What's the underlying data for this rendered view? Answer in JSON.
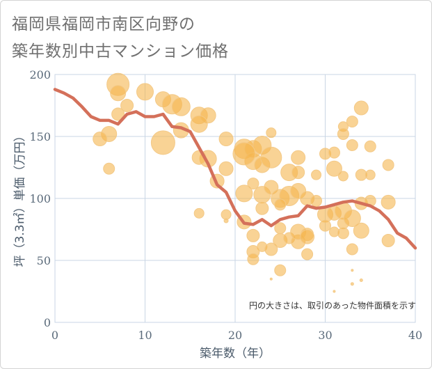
{
  "title": {
    "line1": "福岡県福岡市南区向野の",
    "line2": "築年数別中古マンション価格"
  },
  "colors": {
    "bubble_fill": "#f5b54f",
    "bubble_stroke": "#f3c987",
    "line": "#d4705a",
    "grid": "#c9d6e4",
    "plot_bg": "#ffffff"
  },
  "chart_data": {
    "type": "scatter",
    "xlabel": "築年数（年）",
    "ylabel": "坪（3.3㎡）単価（万円）",
    "xlim": [
      0,
      40
    ],
    "ylim": [
      0,
      200
    ],
    "xticks": [
      0,
      10,
      20,
      30,
      40
    ],
    "yticks": [
      0,
      50,
      100,
      150,
      200
    ],
    "annotation": "円の大きさは、取引のあった物件面積を示す",
    "grid": true,
    "bubbles": [
      {
        "x": 7,
        "y": 192,
        "s": 16
      },
      {
        "x": 7,
        "y": 185,
        "s": 11
      },
      {
        "x": 10,
        "y": 186,
        "s": 12
      },
      {
        "x": 8,
        "y": 175,
        "s": 9
      },
      {
        "x": 12,
        "y": 180,
        "s": 11
      },
      {
        "x": 13,
        "y": 176,
        "s": 14
      },
      {
        "x": 14,
        "y": 174,
        "s": 13
      },
      {
        "x": 7,
        "y": 168,
        "s": 9
      },
      {
        "x": 16,
        "y": 167,
        "s": 12
      },
      {
        "x": 17,
        "y": 167,
        "s": 11
      },
      {
        "x": 16,
        "y": 160,
        "s": 12
      },
      {
        "x": 14,
        "y": 155,
        "s": 11
      },
      {
        "x": 6,
        "y": 152,
        "s": 11
      },
      {
        "x": 5,
        "y": 148,
        "s": 10
      },
      {
        "x": 12,
        "y": 145,
        "s": 17
      },
      {
        "x": 19,
        "y": 148,
        "s": 10
      },
      {
        "x": 17,
        "y": 132,
        "s": 12
      },
      {
        "x": 16,
        "y": 133,
        "s": 10
      },
      {
        "x": 6,
        "y": 124,
        "s": 8
      },
      {
        "x": 19,
        "y": 124,
        "s": 10
      },
      {
        "x": 18,
        "y": 114,
        "s": 10
      },
      {
        "x": 16,
        "y": 88,
        "s": 7
      },
      {
        "x": 19,
        "y": 87,
        "s": 7
      },
      {
        "x": 19,
        "y": 82,
        "s": 3
      },
      {
        "x": 21,
        "y": 140,
        "s": 14
      },
      {
        "x": 22,
        "y": 140,
        "s": 12
      },
      {
        "x": 23,
        "y": 143,
        "s": 13
      },
      {
        "x": 24,
        "y": 153,
        "s": 7
      },
      {
        "x": 22,
        "y": 130,
        "s": 12
      },
      {
        "x": 23,
        "y": 127,
        "s": 11
      },
      {
        "x": 24,
        "y": 133,
        "s": 15
      },
      {
        "x": 21,
        "y": 136,
        "s": 16
      },
      {
        "x": 21,
        "y": 104,
        "s": 12
      },
      {
        "x": 22,
        "y": 112,
        "s": 8
      },
      {
        "x": 23,
        "y": 103,
        "s": 12
      },
      {
        "x": 24,
        "y": 109,
        "s": 10
      },
      {
        "x": 25,
        "y": 100,
        "s": 13
      },
      {
        "x": 26,
        "y": 102,
        "s": 14
      },
      {
        "x": 26,
        "y": 121,
        "s": 12
      },
      {
        "x": 27,
        "y": 133,
        "s": 10
      },
      {
        "x": 27,
        "y": 121,
        "s": 9
      },
      {
        "x": 27,
        "y": 106,
        "s": 11
      },
      {
        "x": 28,
        "y": 100,
        "s": 10
      },
      {
        "x": 25,
        "y": 95,
        "s": 8
      },
      {
        "x": 23,
        "y": 92,
        "s": 9
      },
      {
        "x": 21,
        "y": 81,
        "s": 10
      },
      {
        "x": 22,
        "y": 70,
        "s": 9
      },
      {
        "x": 23,
        "y": 61,
        "s": 7
      },
      {
        "x": 24,
        "y": 59,
        "s": 9
      },
      {
        "x": 22,
        "y": 57,
        "s": 9
      },
      {
        "x": 22,
        "y": 51,
        "s": 8
      },
      {
        "x": 25,
        "y": 66,
        "s": 10
      },
      {
        "x": 26,
        "y": 68,
        "s": 8
      },
      {
        "x": 25,
        "y": 76,
        "s": 8
      },
      {
        "x": 27,
        "y": 65,
        "s": 10
      },
      {
        "x": 27,
        "y": 73,
        "s": 11
      },
      {
        "x": 28,
        "y": 71,
        "s": 9
      },
      {
        "x": 28,
        "y": 69,
        "s": 10
      },
      {
        "x": 28,
        "y": 55,
        "s": 8
      },
      {
        "x": 25,
        "y": 42,
        "s": 8
      },
      {
        "x": 24,
        "y": 35,
        "s": 1.5
      },
      {
        "x": 29,
        "y": 119,
        "s": 7
      },
      {
        "x": 29,
        "y": 98,
        "s": 8
      },
      {
        "x": 30,
        "y": 136,
        "s": 8
      },
      {
        "x": 30,
        "y": 87,
        "s": 11
      },
      {
        "x": 30,
        "y": 78,
        "s": 8
      },
      {
        "x": 31,
        "y": 137,
        "s": 8
      },
      {
        "x": 31,
        "y": 124,
        "s": 11
      },
      {
        "x": 31,
        "y": 88,
        "s": 10
      },
      {
        "x": 31,
        "y": 73,
        "s": 7
      },
      {
        "x": 32,
        "y": 158,
        "s": 7
      },
      {
        "x": 32,
        "y": 152,
        "s": 8
      },
      {
        "x": 32,
        "y": 118,
        "s": 7
      },
      {
        "x": 32,
        "y": 90,
        "s": 12
      },
      {
        "x": 32,
        "y": 80,
        "s": 8
      },
      {
        "x": 32,
        "y": 72,
        "s": 8
      },
      {
        "x": 33,
        "y": 162,
        "s": 8
      },
      {
        "x": 33,
        "y": 143,
        "s": 8
      },
      {
        "x": 33,
        "y": 84,
        "s": 12
      },
      {
        "x": 33,
        "y": 59,
        "s": 8
      },
      {
        "x": 34,
        "y": 173,
        "s": 10
      },
      {
        "x": 34,
        "y": 119,
        "s": 8
      },
      {
        "x": 34,
        "y": 96,
        "s": 9
      },
      {
        "x": 34,
        "y": 74,
        "s": 11
      },
      {
        "x": 35,
        "y": 142,
        "s": 8
      },
      {
        "x": 35,
        "y": 119,
        "s": 7
      },
      {
        "x": 35,
        "y": 98,
        "s": 8
      },
      {
        "x": 37,
        "y": 127,
        "s": 8
      },
      {
        "x": 37,
        "y": 97,
        "s": 10
      },
      {
        "x": 37,
        "y": 66,
        "s": 9
      },
      {
        "x": 33,
        "y": 42,
        "s": 1.5
      },
      {
        "x": 31,
        "y": 25,
        "s": 1.5
      },
      {
        "x": 34,
        "y": 34,
        "s": 2
      },
      {
        "x": 33,
        "y": 31,
        "s": 2
      }
    ],
    "series": [
      {
        "x": [
          0,
          1,
          2,
          3,
          4,
          5,
          6,
          7,
          8,
          9,
          10,
          11,
          12,
          13,
          14,
          15,
          16,
          17,
          18,
          19,
          20,
          21,
          22,
          23,
          24,
          25,
          26,
          27,
          28,
          29,
          30,
          31,
          32,
          33,
          34,
          35,
          36,
          37,
          38,
          39,
          40
        ],
        "y": [
          188,
          185,
          181,
          174,
          166,
          163,
          163,
          160,
          168,
          170,
          166,
          166,
          168,
          158,
          157,
          154,
          141,
          128,
          111,
          105,
          90,
          80,
          79,
          83,
          78,
          83,
          85,
          86,
          94,
          92,
          93,
          95,
          97,
          98,
          96,
          94,
          90,
          83,
          72,
          68,
          60
        ]
      }
    ]
  }
}
